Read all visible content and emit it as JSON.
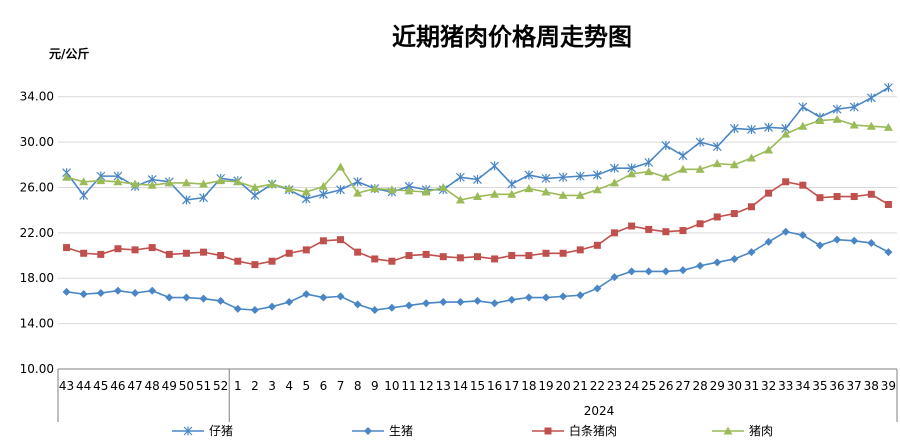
{
  "chart_data": {
    "type": "line",
    "title": "近期猪肉价格周走势图",
    "ylabel": "元/公斤",
    "ylim": [
      10,
      36
    ],
    "yticks": [
      "10.00",
      "14.00",
      "18.00",
      "22.00",
      "26.00",
      "30.00",
      "34.00"
    ],
    "grid": "horizontal",
    "legend_position": "bottom",
    "x": [
      "43",
      "44",
      "45",
      "46",
      "47",
      "48",
      "49",
      "50",
      "51",
      "52",
      "1",
      "2",
      "3",
      "4",
      "5",
      "6",
      "7",
      "8",
      "9",
      "10",
      "11",
      "12",
      "13",
      "14",
      "15",
      "16",
      "17",
      "18",
      "19",
      "20",
      "21",
      "22",
      "23",
      "24",
      "25",
      "26",
      "27",
      "28",
      "29",
      "30",
      "31",
      "32",
      "33",
      "34",
      "35",
      "36",
      "37",
      "38",
      "39"
    ],
    "year_label": "2024",
    "series": [
      {
        "name": "仔猪",
        "color": "#4a86c5",
        "marker": "star",
        "values": [
          27.3,
          25.3,
          27.0,
          27.0,
          26.1,
          26.7,
          26.5,
          24.9,
          25.1,
          26.8,
          26.6,
          25.3,
          26.3,
          25.8,
          25.0,
          25.4,
          25.8,
          26.5,
          25.9,
          25.6,
          26.1,
          25.8,
          25.8,
          26.9,
          26.7,
          27.9,
          26.3,
          27.1,
          26.8,
          26.9,
          27.0,
          27.1,
          27.7,
          27.7,
          28.2,
          29.7,
          28.8,
          30.0,
          29.6,
          31.2,
          31.1,
          31.3,
          31.2,
          33.1,
          32.2,
          32.9,
          33.1,
          33.9,
          34.8
        ]
      },
      {
        "name": "生猪",
        "color": "#4a86c5",
        "marker": "diamond",
        "values": [
          16.8,
          16.6,
          16.7,
          16.9,
          16.7,
          16.9,
          16.3,
          16.3,
          16.2,
          16.0,
          15.3,
          15.2,
          15.5,
          15.9,
          16.6,
          16.3,
          16.4,
          15.7,
          15.2,
          15.4,
          15.6,
          15.8,
          15.9,
          15.9,
          16.0,
          15.8,
          16.1,
          16.3,
          16.3,
          16.4,
          16.5,
          17.1,
          18.1,
          18.6,
          18.6,
          18.6,
          18.7,
          19.1,
          19.4,
          19.7,
          20.3,
          21.2,
          22.1,
          21.8,
          20.9,
          21.4,
          21.3,
          21.1,
          20.3
        ]
      },
      {
        "name": "白条猪肉",
        "color": "#c0504d",
        "marker": "square",
        "values": [
          20.7,
          20.2,
          20.1,
          20.6,
          20.5,
          20.7,
          20.1,
          20.2,
          20.3,
          20.0,
          19.5,
          19.2,
          19.5,
          20.2,
          20.5,
          21.3,
          21.4,
          20.3,
          19.7,
          19.5,
          20.0,
          20.1,
          19.9,
          19.8,
          19.9,
          19.7,
          20.0,
          20.0,
          20.2,
          20.2,
          20.5,
          20.9,
          22.0,
          22.6,
          22.3,
          22.1,
          22.2,
          22.8,
          23.4,
          23.7,
          24.3,
          25.5,
          26.5,
          26.2,
          25.1,
          25.2,
          25.2,
          25.4,
          24.5
        ]
      },
      {
        "name": "猪肉",
        "color": "#9bbb59",
        "marker": "triangle",
        "values": [
          26.9,
          26.5,
          26.6,
          26.5,
          26.3,
          26.2,
          26.4,
          26.4,
          26.3,
          26.6,
          26.5,
          26.0,
          26.3,
          25.9,
          25.6,
          26.1,
          27.8,
          25.5,
          25.9,
          25.8,
          25.7,
          25.6,
          26.0,
          24.9,
          25.2,
          25.4,
          25.4,
          25.9,
          25.6,
          25.3,
          25.3,
          25.8,
          26.4,
          27.2,
          27.4,
          26.9,
          27.6,
          27.6,
          28.1,
          28.0,
          28.6,
          29.3,
          30.7,
          31.4,
          31.9,
          32.0,
          31.5,
          31.4,
          31.3
        ]
      }
    ]
  }
}
